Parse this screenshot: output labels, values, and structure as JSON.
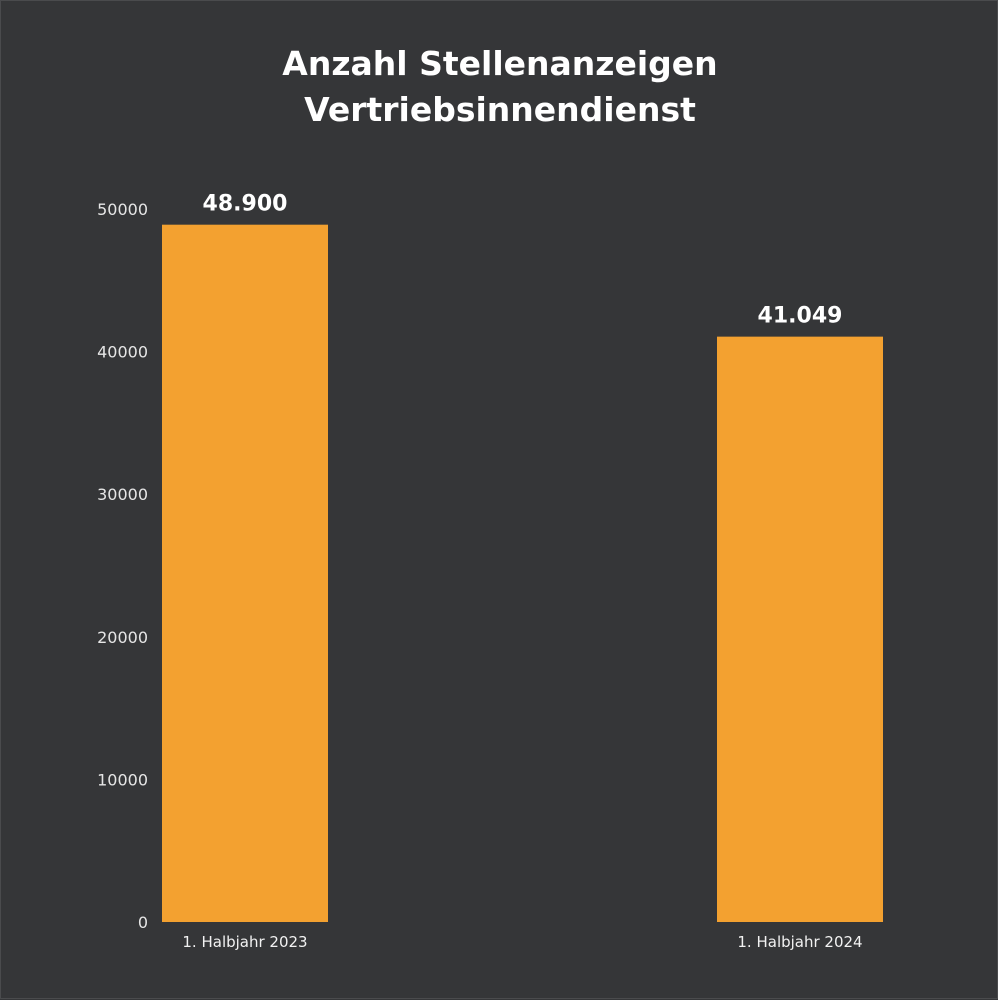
{
  "chart_data": {
    "type": "bar",
    "title": [
      "Anzahl Stellenanzeigen",
      "Vertriebsinnendienst"
    ],
    "categories": [
      "1. Halbjahr 2023",
      "1. Halbjahr 2024"
    ],
    "values": [
      48900,
      41049
    ],
    "data_labels": [
      "48.900",
      "41.049"
    ],
    "yticks": [
      "0",
      "10000",
      "20000",
      "30000",
      "40000",
      "50000"
    ],
    "ylim": [
      0,
      50000
    ],
    "grid": false,
    "legend": "none"
  },
  "colors": {
    "background": "#353638",
    "bar": "#f3a130",
    "text": "#ffffff"
  }
}
